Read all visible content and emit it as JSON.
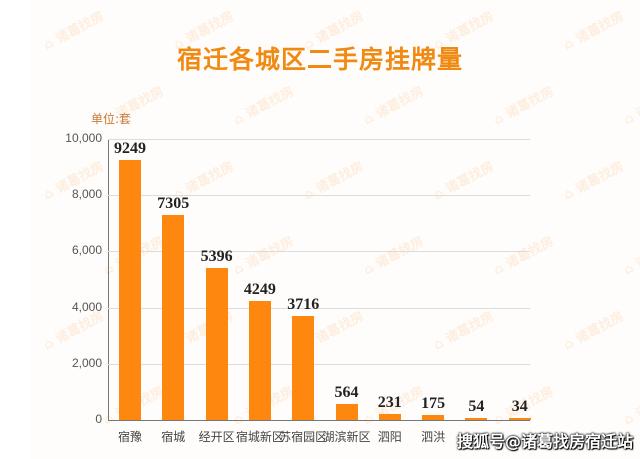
{
  "title": "宿迁各城区二手房挂牌量",
  "unit_label": "单位:套",
  "watermark_text": "诸葛找房",
  "source_watermark": "搜狐号@诸葛找房宿迁站",
  "colors": {
    "bar": "#fd870f",
    "title": "#f08a13",
    "unit": "#c77a3a"
  },
  "y_ticks": [
    "10,000",
    "8,000",
    "6,000",
    "4,000",
    "2,000",
    "0"
  ],
  "chart_data": {
    "type": "bar",
    "title": "宿迁各城区二手房挂牌量",
    "xlabel": "",
    "ylabel": "单位:套",
    "ylim": [
      0,
      10000
    ],
    "grid": true,
    "categories": [
      "宿豫",
      "宿城",
      "经开区",
      "宿城新区",
      "苏宿园区",
      "湖滨新区",
      "泗阳",
      "泗洪",
      "",
      ""
    ],
    "values": [
      9249,
      7305,
      5396,
      4249,
      3716,
      564,
      231,
      175,
      54,
      34
    ],
    "value_labels": [
      "9249",
      "7305",
      "5396",
      "4249",
      "3716",
      "564",
      "231",
      "175",
      "54",
      "34"
    ]
  }
}
